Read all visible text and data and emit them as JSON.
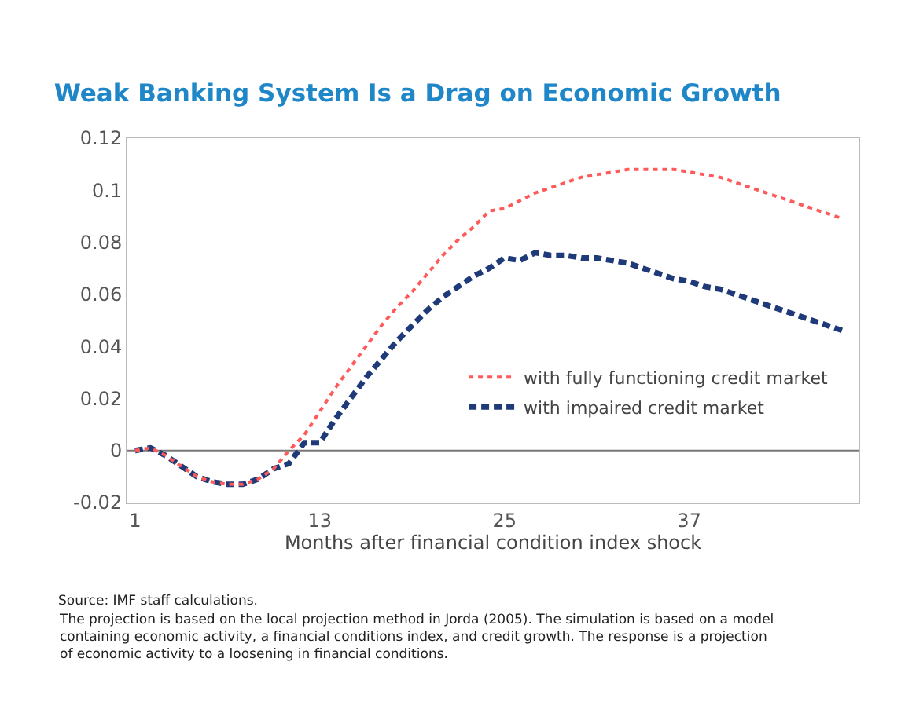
{
  "chart_data": {
    "type": "line",
    "title": "Weak Banking System Is a Drag on Economic Growth",
    "xlabel": "Months after financial condition index shock",
    "x": [
      1,
      2,
      3,
      4,
      5,
      6,
      7,
      8,
      9,
      10,
      11,
      12,
      13,
      14,
      15,
      16,
      17,
      18,
      19,
      20,
      21,
      22,
      23,
      24,
      25,
      26,
      27,
      28,
      29,
      30,
      31,
      32,
      33,
      34,
      35,
      36,
      37,
      38,
      39,
      40,
      41,
      42,
      43,
      44,
      45,
      46,
      47
    ],
    "series": [
      {
        "name": "with fully functioning credit market",
        "color": "#ff5a5a",
        "line_style": "dotted",
        "values": [
          0,
          0.001,
          -0.002,
          -0.006,
          -0.01,
          -0.012,
          -0.013,
          -0.013,
          -0.011,
          -0.007,
          0.0,
          0.006,
          0.015,
          0.024,
          0.032,
          0.04,
          0.048,
          0.055,
          0.061,
          0.068,
          0.075,
          0.081,
          0.086,
          0.092,
          0.093,
          0.096,
          0.099,
          0.101,
          0.103,
          0.105,
          0.106,
          0.107,
          0.108,
          0.108,
          0.108,
          0.108,
          0.107,
          0.106,
          0.105,
          0.103,
          0.101,
          0.099,
          0.097,
          0.095,
          0.093,
          0.091,
          0.089
        ]
      },
      {
        "name": "with impaired credit market",
        "color": "#1f3a78",
        "line_style": "dashed",
        "values": [
          0,
          0.001,
          -0.002,
          -0.006,
          -0.01,
          -0.012,
          -0.013,
          -0.013,
          -0.011,
          -0.007,
          -0.005,
          0.003,
          0.003,
          0.012,
          0.02,
          0.028,
          0.035,
          0.042,
          0.048,
          0.054,
          0.059,
          0.063,
          0.067,
          0.07,
          0.074,
          0.073,
          0.076,
          0.075,
          0.075,
          0.074,
          0.074,
          0.073,
          0.072,
          0.07,
          0.068,
          0.066,
          0.065,
          0.063,
          0.062,
          0.06,
          0.058,
          0.056,
          0.054,
          0.052,
          0.05,
          0.048,
          0.046
        ]
      }
    ],
    "xlim": [
      0.5,
      48
    ],
    "xticks": [
      1,
      13,
      25,
      37
    ],
    "ylim": [
      -0.02,
      0.12
    ],
    "yticks": [
      -0.02,
      0,
      0.02,
      0.04,
      0.06,
      0.08,
      0.1,
      0.12
    ],
    "grid": false,
    "ref_lines": [
      {
        "axis": "y",
        "value": 0,
        "color": "#777777"
      }
    ],
    "legend": "bottom right",
    "marker": "none",
    "annotations": [
      "Source: IMF staff calculations.",
      "The projection is based on the local projection method in Jorda (2005). The simulation is based on a model containing economic activity, a financial conditions index, and credit growth. The response is a projection of economic activity to a loosening in financial conditions."
    ]
  }
}
